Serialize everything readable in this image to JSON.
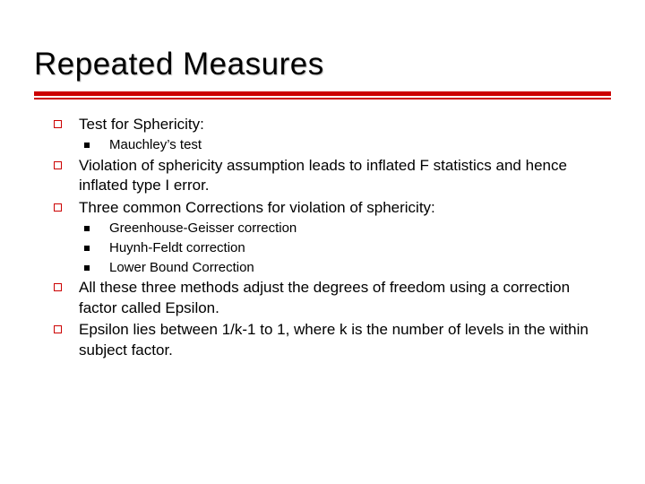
{
  "title": "Repeated Measures",
  "colors": {
    "accent": "#cc0000",
    "background": "#ffffff",
    "text": "#000000"
  },
  "typography": {
    "title_fontsize": 35,
    "body_fontsize": 17,
    "sub_fontsize": 15,
    "font_family": "Verdana"
  },
  "bullets": {
    "b1": "Test for Sphericity:",
    "b1_1": "Mauchley’s test",
    "b2": "Violation of sphericity assumption leads to inflated F statistics and hence inflated type I error.",
    "b3": "Three common Corrections for violation of sphericity:",
    "b3_1": "Greenhouse-Geisser correction",
    "b3_2": "Huynh-Feldt correction",
    "b3_3": "Lower Bound Correction",
    "b4": "All these three methods adjust the degrees of freedom using a correction factor called Epsilon.",
    "b5": "Epsilon lies between 1/k-1 to 1, where k is the number of levels in the within subject factor."
  }
}
